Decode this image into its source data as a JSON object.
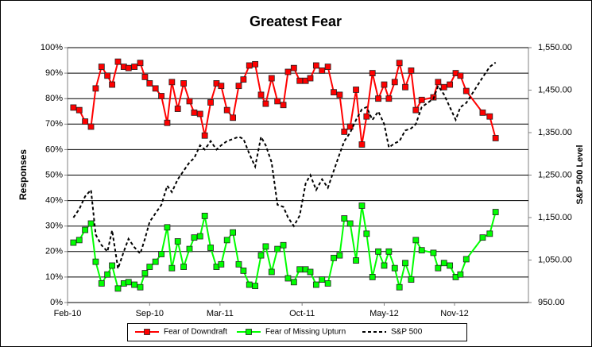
{
  "chart_data": {
    "type": "line",
    "title": "Greatest Fear",
    "y_label": "Responses",
    "y2_label": "S&P 500 Level",
    "x": [
      0.5,
      1.0,
      1.5,
      2.0,
      2.4,
      2.9,
      3.4,
      3.8,
      4.3,
      4.8,
      5.2,
      5.7,
      6.2,
      6.6,
      7.0,
      7.5,
      8.0,
      8.5,
      8.9,
      9.4,
      9.9,
      10.4,
      10.8,
      11.3,
      11.7,
      12.2,
      12.7,
      13.1,
      13.6,
      14.1,
      14.6,
      15.0,
      15.5,
      16.0,
      16.5,
      16.9,
      17.4,
      17.9,
      18.4,
      18.8,
      19.3,
      19.8,
      20.3,
      20.7,
      21.2,
      21.7,
      22.2,
      22.7,
      23.2,
      23.6,
      24.1,
      24.6,
      25.1,
      25.5,
      26.0,
      26.5,
      27.0,
      27.4,
      27.9,
      28.3,
      28.8,
      29.3,
      29.7,
      30.2,
      31.2,
      31.6,
      32.1,
      32.6,
      33.1,
      33.5,
      34.0,
      35.4,
      36.0,
      36.5
    ],
    "xlim": [
      0,
      39.3
    ],
    "xticks": [
      {
        "value": 0,
        "label": "Feb-10"
      },
      {
        "value": 7,
        "label": "Sep-10"
      },
      {
        "value": 13,
        "label": "Mar-11"
      },
      {
        "value": 20,
        "label": "Oct-11"
      },
      {
        "value": 27,
        "label": "May-12"
      },
      {
        "value": 33,
        "label": "Nov-12"
      }
    ],
    "ylim": [
      0,
      100
    ],
    "yticks": [
      {
        "value": 0,
        "label": "0%"
      },
      {
        "value": 10,
        "label": "10%"
      },
      {
        "value": 20,
        "label": "20%"
      },
      {
        "value": 30,
        "label": "30%"
      },
      {
        "value": 40,
        "label": "40%"
      },
      {
        "value": 50,
        "label": "50%"
      },
      {
        "value": 60,
        "label": "60%"
      },
      {
        "value": 70,
        "label": "70%"
      },
      {
        "value": 80,
        "label": "80%"
      },
      {
        "value": 90,
        "label": "90%"
      },
      {
        "value": 100,
        "label": "100%"
      }
    ],
    "y2lim": [
      950,
      1550
    ],
    "y2ticks": [
      {
        "value": 950,
        "label": "950.00"
      },
      {
        "value": 1050,
        "label": "1,050.00"
      },
      {
        "value": 1150,
        "label": "1,150.00"
      },
      {
        "value": 1250,
        "label": "1,250.00"
      },
      {
        "value": 1350,
        "label": "1,350.00"
      },
      {
        "value": 1450,
        "label": "1,450.00"
      },
      {
        "value": 1550,
        "label": "1,550.00"
      }
    ],
    "grid": true,
    "series": [
      {
        "name": "Fear of Downdraft",
        "color": "#ff0000",
        "marker": "square",
        "values": [
          76.5,
          75.5,
          71,
          69,
          84,
          92.5,
          89,
          85.5,
          94.5,
          92.5,
          92,
          92.5,
          94,
          88.5,
          86,
          84,
          81,
          70.5,
          86.5,
          76,
          86,
          79,
          74.5,
          74,
          65.5,
          78.5,
          86,
          85,
          75.5,
          72.5,
          85,
          87.5,
          93,
          93.5,
          81.5,
          78,
          88,
          79,
          77.5,
          90.5,
          92,
          87,
          87,
          88,
          93,
          91,
          92.5,
          82.5,
          81.5,
          67,
          69,
          83.5,
          62,
          73,
          90,
          80,
          85.5,
          80,
          86.5,
          94,
          84.5,
          91,
          75.5,
          79.5,
          80.5,
          86.5,
          84.5,
          85.5,
          90,
          89,
          83,
          74.5,
          73,
          64.5
        ]
      },
      {
        "name": "Fear of Missing Upturn",
        "color": "#00ff00",
        "marker": "square",
        "values": [
          23.5,
          24.5,
          28.5,
          31,
          16,
          7.5,
          11,
          14.5,
          5.5,
          7.5,
          8,
          7,
          6,
          11.5,
          14,
          16,
          19,
          29.5,
          13.5,
          24,
          14,
          21,
          25.5,
          26,
          34,
          21.5,
          14,
          15,
          24.5,
          27.5,
          15,
          12.5,
          7,
          6.5,
          18.5,
          22,
          12,
          21,
          22.5,
          9.5,
          8,
          13,
          13,
          12,
          7,
          9,
          7.5,
          17.5,
          18.5,
          33,
          31,
          16.5,
          38,
          27,
          10,
          20,
          14.5,
          20,
          13.5,
          6,
          15.5,
          9,
          24.5,
          20.5,
          19.5,
          13.5,
          15.5,
          14.5,
          10,
          11,
          17,
          25.5,
          27,
          35.5
        ]
      },
      {
        "name": "S&P 500",
        "color": "#000000",
        "dash": true,
        "axis": "y2",
        "values": [
          1150,
          1170,
          1200,
          1215,
          1110,
          1085,
          1070,
          1120,
          1030,
          1070,
          1100,
          1080,
          1065,
          1100,
          1140,
          1160,
          1180,
          1225,
          1210,
          1240,
          1260,
          1280,
          1290,
          1320,
          1310,
          1330,
          1310,
          1320,
          1330,
          1335,
          1340,
          1335,
          1300,
          1270,
          1340,
          1320,
          1280,
          1180,
          1175,
          1150,
          1130,
          1155,
          1230,
          1250,
          1215,
          1240,
          1220,
          1260,
          1300,
          1330,
          1350,
          1380,
          1405,
          1410,
          1380,
          1400,
          1370,
          1315,
          1325,
          1330,
          1355,
          1360,
          1370,
          1410,
          1430,
          1460,
          1440,
          1410,
          1380,
          1410,
          1420,
          1480,
          1505,
          1515
        ]
      }
    ]
  }
}
